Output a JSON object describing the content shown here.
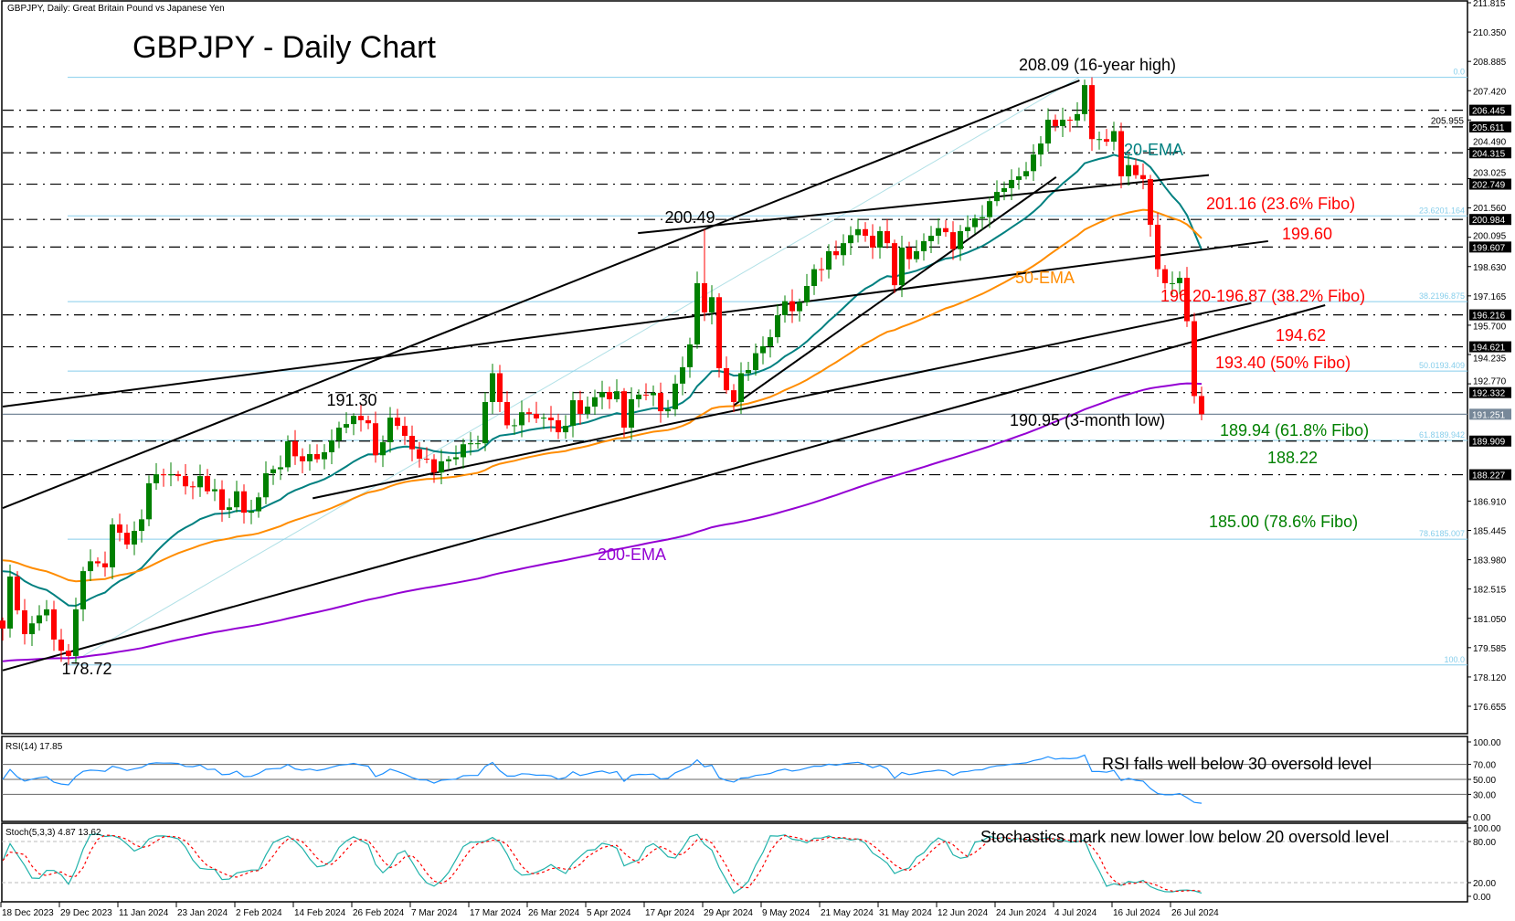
{
  "header": {
    "symbol_info": "GBPJPY, Daily:  Great Britain Pound vs Japanese Yen",
    "title": "GBPJPY - Daily Chart"
  },
  "colors": {
    "bull_candle": "#008000",
    "bear_candle": "#ff0000",
    "ema20": "#008080",
    "ema50": "#ff8c00",
    "ema200": "#9400d3",
    "fibo": "#87ceeb",
    "rsi": "#1e90ff",
    "stoch_main": "#20b2aa",
    "stoch_signal": "#ff0000",
    "annotation_red": "#ff0000",
    "annotation_green": "#008000"
  },
  "chart_data": {
    "type": "candlestick",
    "title": "GBPJPY - Daily Chart",
    "x_tick_labels": [
      "18 Dec 2023",
      "29 Dec 2023",
      "11 Jan 2024",
      "23 Jan 2024",
      "2 Feb 2024",
      "14 Feb 2024",
      "26 Feb 2024",
      "7 Mar 2024",
      "17 Mar 2024",
      "26 Mar 2024",
      "5 Apr 2024",
      "17 Apr 2024",
      "29 Apr 2024",
      "9 May 2024",
      "21 May 2024",
      "31 May 2024",
      "12 Jun 2024",
      "24 Jun 2024",
      "4 Jul 2024",
      "16 Jul 2024",
      "26 Jul 2024"
    ],
    "x_tick_every_bars": 8,
    "ylim": [
      176.0,
      211.815
    ],
    "y_ticks": [
      "211.815",
      "210.350",
      "208.885",
      "207.420",
      "205.955",
      "204.490",
      "203.025",
      "201.560",
      "200.095",
      "198.630",
      "197.165",
      "195.700",
      "194.235",
      "192.770",
      "186.910",
      "185.445",
      "183.980",
      "182.515",
      "181.050",
      "179.585",
      "178.120",
      "176.655"
    ],
    "close": [
      180.54,
      183.14,
      181.45,
      180.26,
      180.8,
      181.2,
      181.5,
      179.99,
      179.43,
      179.17,
      181.5,
      183.41,
      183.9,
      183.8,
      183.6,
      185.74,
      185.33,
      184.74,
      185.42,
      186.0,
      187.8,
      188.25,
      188.2,
      188.25,
      188.16,
      187.65,
      187.6,
      188.16,
      187.4,
      187.5,
      186.47,
      186.6,
      187.4,
      186.33,
      186.4,
      187.1,
      188.3,
      188.5,
      188.6,
      189.9,
      189.15,
      188.9,
      189.26,
      189.0,
      189.35,
      189.94,
      190.58,
      190.76,
      191.17,
      190.95,
      190.8,
      189.2,
      189.85,
      191.08,
      190.67,
      190.17,
      189.5,
      189.03,
      189.0,
      188.34,
      188.9,
      189.0,
      189.1,
      189.75,
      189.8,
      189.8,
      191.86,
      193.3,
      191.86,
      190.7,
      190.7,
      191.35,
      191.27,
      191.04,
      191.08,
      190.95,
      190.35,
      190.67,
      191.95,
      191.27,
      191.63,
      192.1,
      192.36,
      192.0,
      192.4,
      190.58,
      192.0,
      192.23,
      192.2,
      192.32,
      191.4,
      191.5,
      192.78,
      193.6,
      194.74,
      197.8,
      196.34,
      197.1,
      193.55,
      192.45,
      191.86,
      193.3,
      193.46,
      194.3,
      194.65,
      195.1,
      196.2,
      196.9,
      196.4,
      196.85,
      197.66,
      198.5,
      198.48,
      199.4,
      199.2,
      199.8,
      200.2,
      200.5,
      200.17,
      199.58,
      200.4,
      199.8,
      197.7,
      199.58,
      199.0,
      199.4,
      199.9,
      200.17,
      200.55,
      200.35,
      199.5,
      200.4,
      200.6,
      201.04,
      201.1,
      201.9,
      202.36,
      202.55,
      202.96,
      203.14,
      203.4,
      204.23,
      204.78,
      205.97,
      205.65,
      205.97,
      205.93,
      206.25,
      207.7,
      205.0,
      205.0,
      204.87,
      205.4,
      203.14,
      203.7,
      203.2,
      203.0,
      200.72,
      198.5,
      197.8,
      197.8,
      198.07,
      195.9,
      192.16,
      191.25
    ],
    "extremes": [
      {
        "bar": 9,
        "type": "low",
        "value": 178.72
      },
      {
        "bar": 48,
        "type": "high",
        "value": 191.3
      },
      {
        "bar": 96,
        "type": "high",
        "value": 200.49
      },
      {
        "bar": 149,
        "type": "high",
        "value": 208.09
      },
      {
        "bar": 164,
        "type": "low",
        "value": 190.95
      }
    ],
    "indicators": [
      {
        "name": "20-EMA",
        "period": 20,
        "start": 183.4,
        "color": "#008080"
      },
      {
        "name": "50-EMA",
        "period": 50,
        "start": 183.95,
        "color": "#ff8c00"
      },
      {
        "name": "200-EMA",
        "period": 200,
        "start": 178.9,
        "color": "#9400d3"
      }
    ],
    "horizontal_levels": [
      206.445,
      205.611,
      204.315,
      202.749,
      200.984,
      199.607,
      196.216,
      194.621,
      192.332,
      189.909,
      188.227
    ],
    "current_price": 191.251,
    "fibonacci": [
      {
        "label": "0.0",
        "value": 208.09
      },
      {
        "label": "23.6201.164",
        "value": 201.164
      },
      {
        "label": "38.2196.875",
        "value": 196.875
      },
      {
        "label": "50.0193.409",
        "value": 193.409
      },
      {
        "label": "61.8189.942",
        "value": 189.942
      },
      {
        "label": "78.6185.007",
        "value": 185.007
      },
      {
        "label": "100.0",
        "value": 178.72
      }
    ],
    "trendlines": [
      {
        "from": [
          0,
          186.56
        ],
        "to": [
          147.3,
          207.93
        ]
      },
      {
        "from": [
          0,
          178.45
        ],
        "to": [
          180.9,
          196.7
        ]
      },
      {
        "from": [
          0,
          191.63
        ],
        "to": [
          173.1,
          199.9
        ]
      },
      {
        "from": [
          42.4,
          187.05
        ],
        "to": [
          170.8,
          196.8
        ]
      },
      {
        "from": [
          86.9,
          200.3
        ],
        "to": [
          165.0,
          203.2
        ]
      },
      {
        "from": [
          100.0,
          191.69
        ],
        "to": [
          144.1,
          203.1
        ]
      }
    ],
    "rsi": {
      "label": "RSI(14) 17.85",
      "period": 14,
      "levels": [
        "70.00",
        "50.00",
        "30.00"
      ],
      "axis": [
        "100.00",
        "70.00",
        "50.00",
        "30.00",
        "0.00"
      ]
    },
    "stoch": {
      "label": "Stoch(5,3,3) 4.87 13.62",
      "k": 5,
      "d": 3,
      "slowing": 3,
      "levels": [
        "80.00",
        "20.00"
      ],
      "axis": [
        "100.00",
        "80.00",
        "20.00",
        "0.00"
      ]
    }
  },
  "annotations": {
    "high": "208.09 (16-year high)",
    "ema20": "20-EMA",
    "fibo236": "201.16 (23.6% Fibo)",
    "lvl19960": "199.60",
    "ema50": "50-EMA",
    "fibo382": "196.20-196.87 (38.2% Fibo)",
    "lvl19462": "194.62",
    "fibo50": "193.40 (50% Fibo)",
    "low3m": "190.95 (3-month low)",
    "fibo618": "189.94 (61.8% Fibo)",
    "lvl18822": "188.22",
    "fibo786": "185.00 (78.6% Fibo)",
    "ema200": "200-EMA",
    "peak20049": "200.49",
    "peak19130": "191.30",
    "low17872": "178.72",
    "rsi_note": "RSI falls well below 30 oversold level",
    "stoch_note": "Stochastics mark new lower low below 20 oversold level"
  },
  "price_badges": [
    "206.445",
    "205.611",
    "204.315",
    "202.749",
    "200.984",
    "199.607",
    "196.216",
    "194.621",
    "192.332",
    "189.909",
    "188.227"
  ],
  "current_badge": "191.251"
}
